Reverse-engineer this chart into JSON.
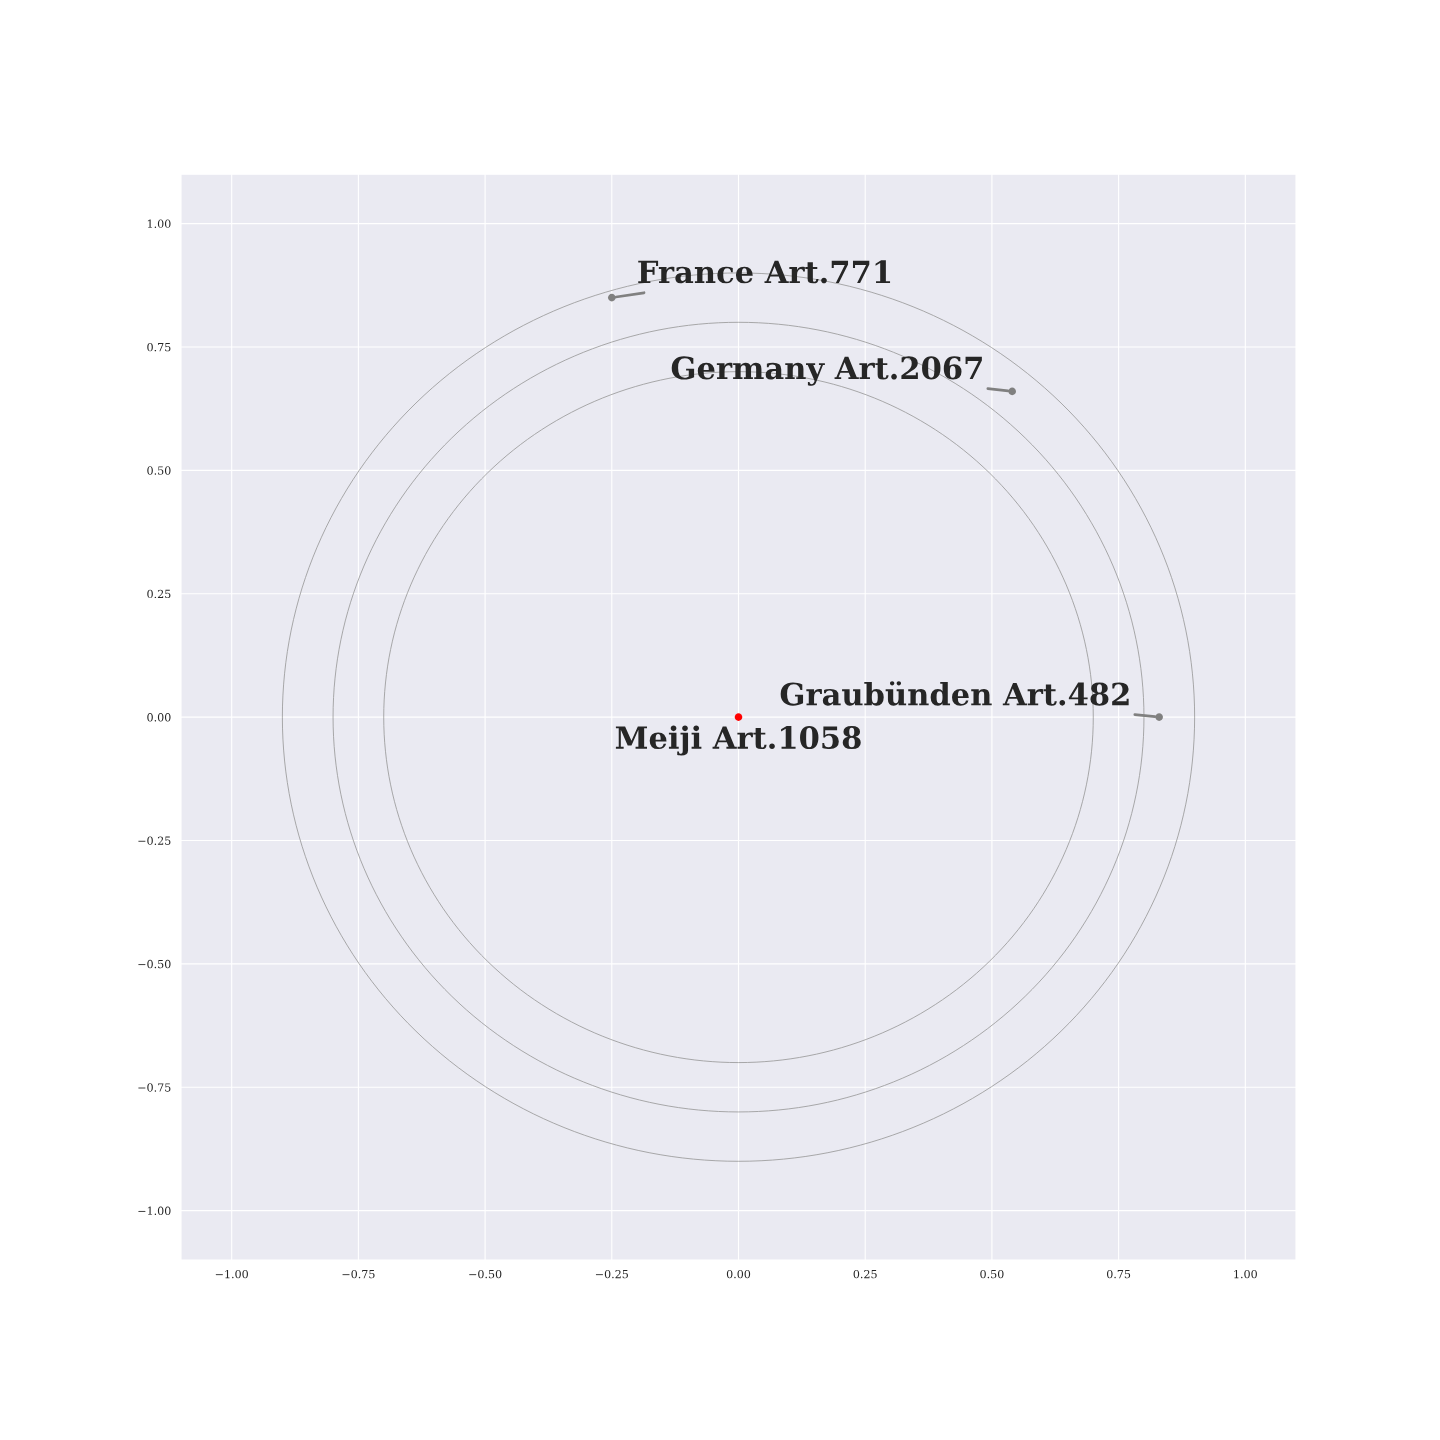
{
  "chart_data": {
    "type": "scatter",
    "series": [
      {
        "x": [
          -0.25,
          0.54,
          0.83,
          0
        ],
        "values": [
          0.85,
          0.66,
          0,
          0
        ],
        "colors": [
          "#808080",
          "#808080",
          "#808080",
          "#ff0000"
        ]
      }
    ],
    "annotations": [
      {
        "text": "France Art.771",
        "x": -0.25,
        "y": 0.85
      },
      {
        "text": "Germany Art.2067",
        "x": 0.54,
        "y": 0.66
      },
      {
        "text": "Graubünden Art.482",
        "x": 0.83,
        "y": 0
      },
      {
        "text": "Meiji Art.1058",
        "x": 0,
        "y": 0
      }
    ],
    "xlim": [
      -1.1,
      1.1
    ],
    "ylim": [
      -1.1,
      1.1
    ],
    "xticks": [
      {
        "value": -1,
        "label": "−1.00"
      },
      {
        "value": -0.75,
        "label": "−0.75"
      },
      {
        "value": -0.5,
        "label": "−0.50"
      },
      {
        "value": -0.25,
        "label": "−0.25"
      },
      {
        "value": 0,
        "label": "0.00"
      },
      {
        "value": 0.25,
        "label": "0.25"
      },
      {
        "value": 0.5,
        "label": "0.50"
      },
      {
        "value": 0.75,
        "label": "0.75"
      },
      {
        "value": 1,
        "label": "1.00"
      }
    ],
    "yticks": [
      {
        "value": -1,
        "label": "−1.00"
      },
      {
        "value": -0.75,
        "label": "−0.75"
      },
      {
        "value": -0.5,
        "label": "−0.50"
      },
      {
        "value": -0.25,
        "label": "−0.25"
      },
      {
        "value": 0,
        "label": "0.00"
      },
      {
        "value": 0.25,
        "label": "0.25"
      },
      {
        "value": 0.5,
        "label": "0.50"
      },
      {
        "value": 0.75,
        "label": "0.75"
      },
      {
        "value": 1,
        "label": "1.00"
      }
    ],
    "grid": true
  }
}
